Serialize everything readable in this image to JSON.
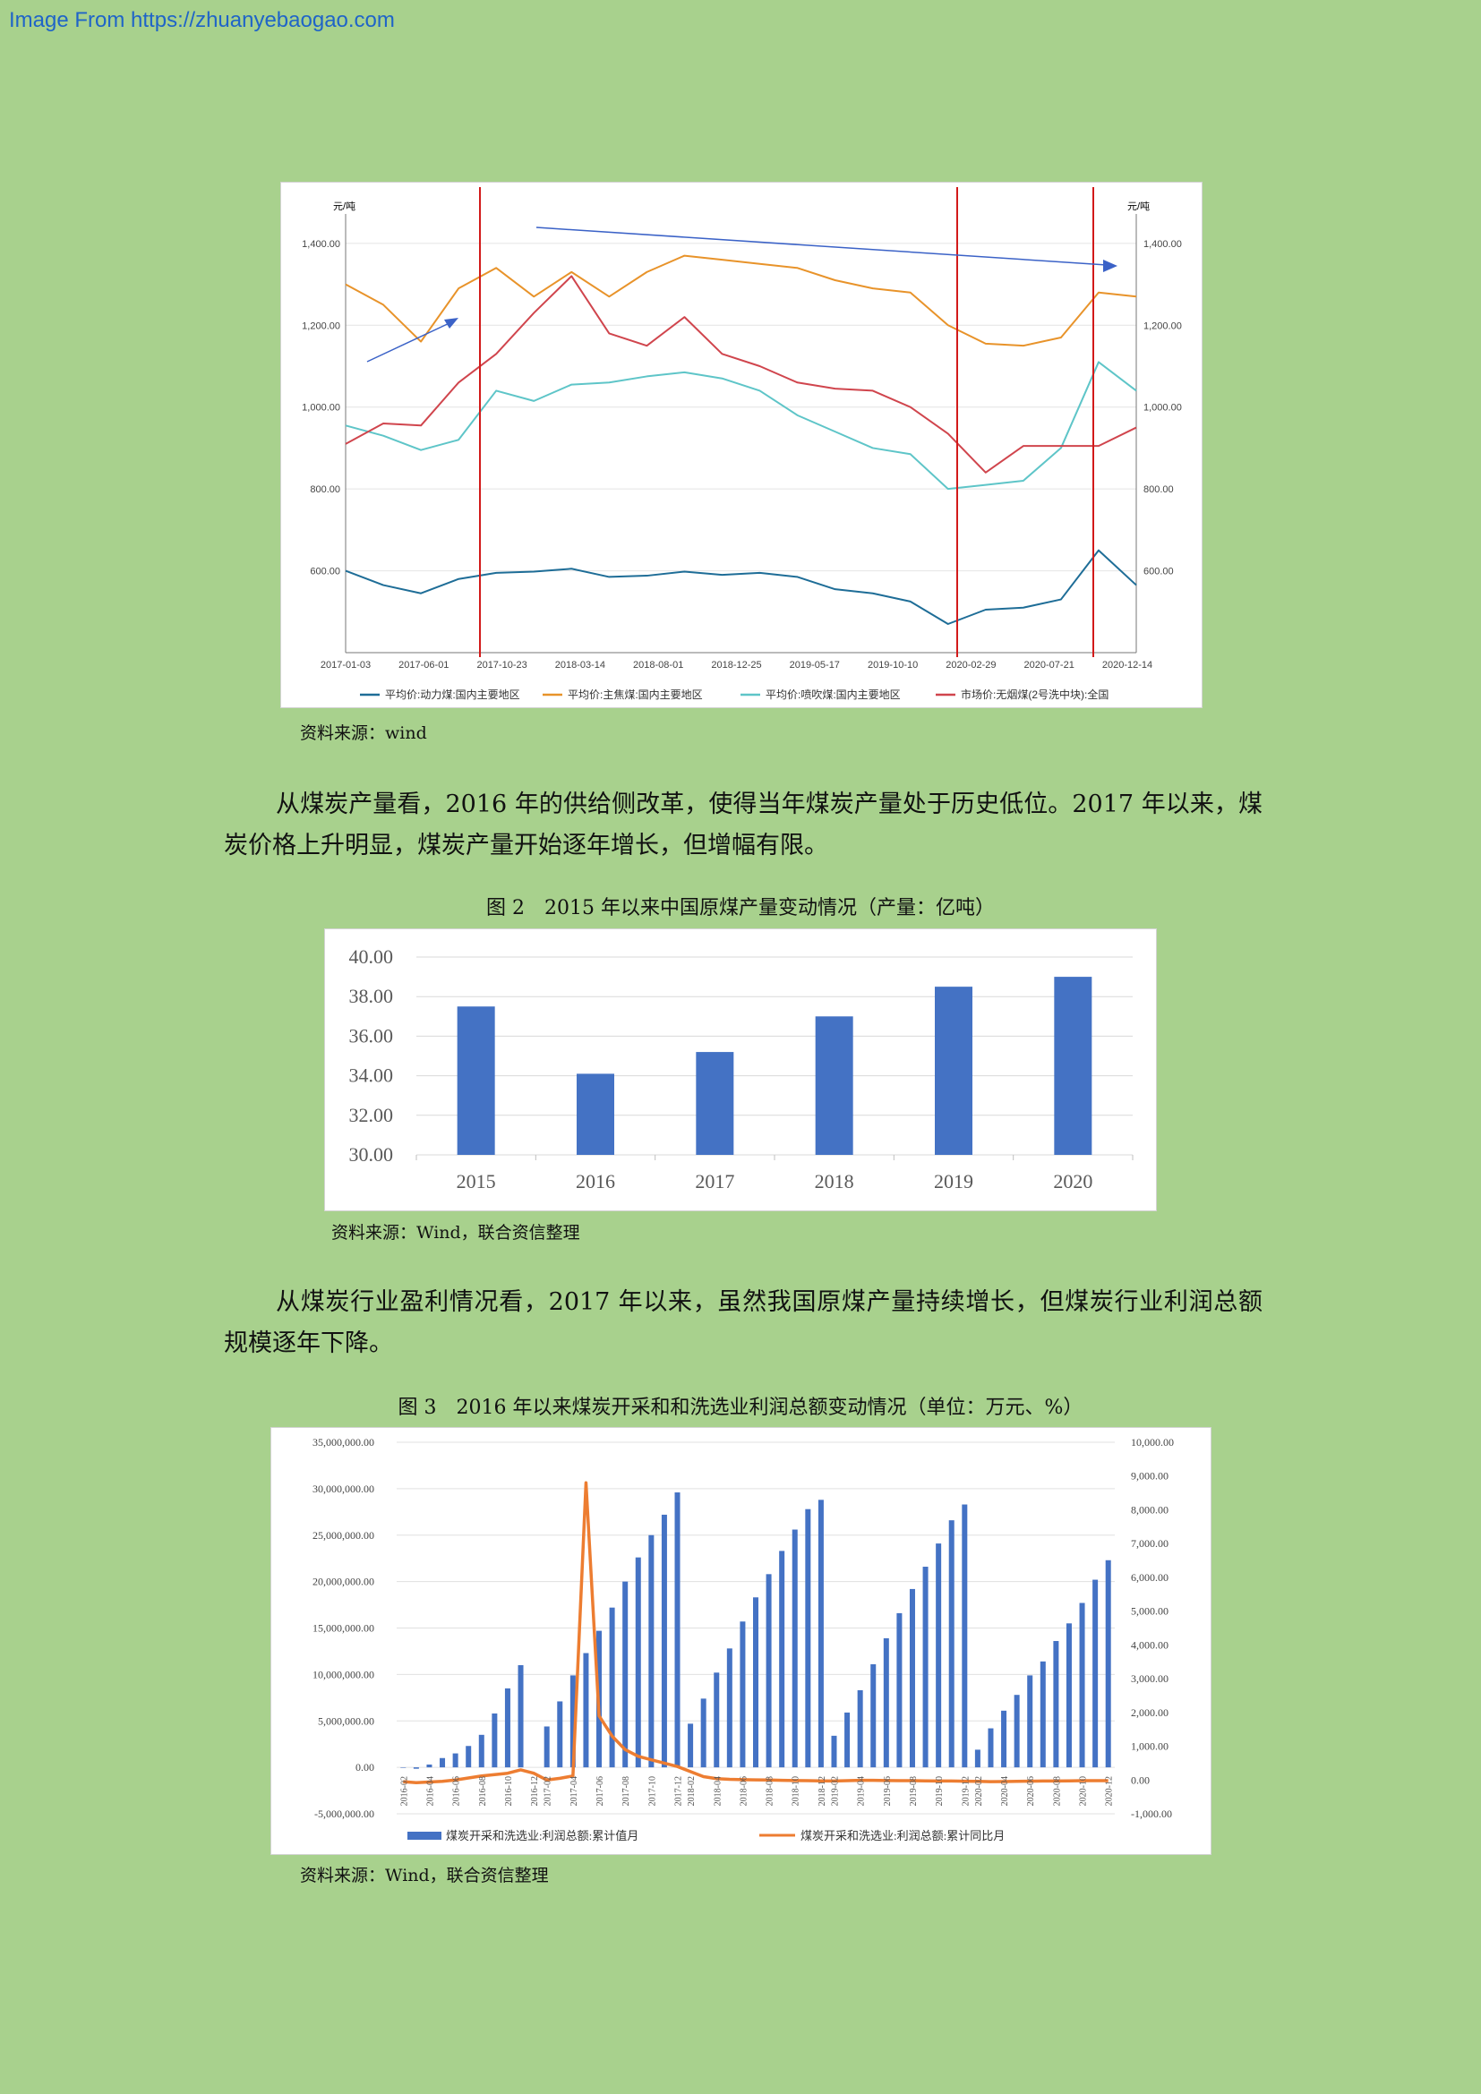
{
  "watermark": "Image From https://zhuanyebaogao.com",
  "figure1": {
    "unit_left": "元/吨",
    "unit_right": "元/吨",
    "source": "资料来源：wind"
  },
  "paragraph1": "从煤炭产量看，2016 年的供给侧改革，使得当年煤炭产量处于历史低位。2017 年以来，煤炭价格上升明显，煤炭产量开始逐年增长，但增幅有限。",
  "figure2": {
    "caption": "图 2　2015 年以来中国原煤产量变动情况（产量：亿吨）",
    "source": "资料来源：Wind，联合资信整理"
  },
  "paragraph2": "从煤炭行业盈利情况看，2017 年以来，虽然我国原煤产量持续增长，但煤炭行业利润总额规模逐年下降。",
  "figure3": {
    "caption": "图 3　2016 年以来煤炭开采和和洗选业利润总额变动情况（单位：万元、%）",
    "source": "资料来源：Wind，联合资信整理"
  },
  "colors": {
    "thermal": "#1e6d97",
    "coking": "#e8932a",
    "injection": "#5ec5c8",
    "anthracite": "#d0454d",
    "bar": "#4472c4",
    "yoy": "#ed7d31",
    "vline": "#d21a1a",
    "arrow": "#3b62c7"
  },
  "chart_data": [
    {
      "type": "line",
      "ylim": [
        400,
        1450
      ],
      "yticks": [
        "1,400.00",
        "1,200.00",
        "1,000.00",
        "800.00",
        "600.00"
      ],
      "ytick_values": [
        1400,
        1200,
        1000,
        800,
        600
      ],
      "xticks": [
        "2017-01-03",
        "2017-06-01",
        "2017-10-23",
        "2018-03-14",
        "2018-08-01",
        "2018-12-25",
        "2019-05-17",
        "2019-10-10",
        "2020-02-29",
        "2020-07-21",
        "2020-12-14"
      ],
      "x": [
        "2017-01",
        "2017-04",
        "2017-07",
        "2017-09",
        "2017-11",
        "2018-01",
        "2018-03",
        "2018-05",
        "2018-08",
        "2018-11",
        "2019-01",
        "2019-03",
        "2019-06",
        "2019-09",
        "2019-12",
        "2020-02",
        "2020-04",
        "2020-06",
        "2020-08",
        "2020-10",
        "2020-12",
        "2021-01"
      ],
      "legend_position": "bottom",
      "series": [
        {
          "name": "平均价:动力煤:国内主要地区",
          "color_key": "thermal",
          "values": [
            600,
            565,
            545,
            580,
            595,
            598,
            605,
            585,
            588,
            598,
            590,
            595,
            585,
            555,
            545,
            525,
            470,
            505,
            510,
            530,
            650,
            565
          ]
        },
        {
          "name": "平均价:主焦煤:国内主要地区",
          "color_key": "coking",
          "values": [
            1300,
            1250,
            1160,
            1290,
            1340,
            1270,
            1330,
            1270,
            1330,
            1370,
            1360,
            1350,
            1340,
            1310,
            1290,
            1280,
            1200,
            1155,
            1150,
            1170,
            1280,
            1270
          ]
        },
        {
          "name": "平均价:喷吹煤:国内主要地区",
          "color_key": "injection",
          "values": [
            955,
            930,
            895,
            920,
            1040,
            1015,
            1055,
            1060,
            1075,
            1085,
            1070,
            1040,
            980,
            940,
            900,
            885,
            800,
            810,
            820,
            900,
            1110,
            1040
          ]
        },
        {
          "name": "市场价:无烟煤(2号洗中块):全国",
          "color_key": "anthracite",
          "values": [
            910,
            960,
            955,
            1060,
            1130,
            1230,
            1320,
            1180,
            1150,
            1220,
            1130,
            1100,
            1060,
            1045,
            1040,
            1000,
            935,
            840,
            905,
            905,
            905,
            950
          ]
        }
      ]
    },
    {
      "type": "bar",
      "categories": [
        "2015",
        "2016",
        "2017",
        "2018",
        "2019",
        "2020"
      ],
      "values": [
        37.5,
        34.1,
        35.2,
        37.0,
        38.5,
        39.0
      ],
      "ylim": [
        30,
        40
      ],
      "yticks": [
        "40.00",
        "38.00",
        "36.00",
        "34.00",
        "32.00",
        "30.00"
      ],
      "ytick_values": [
        40,
        38,
        36,
        34,
        32,
        30
      ]
    },
    {
      "type": "bar",
      "categories": [
        "2016-02",
        "2016-03",
        "2016-04",
        "2016-05",
        "2016-06",
        "2016-07",
        "2016-08",
        "2016-09",
        "2016-10",
        "2016-11",
        "2016-12",
        "2017-02",
        "2017-03",
        "2017-04",
        "2017-05",
        "2017-06",
        "2017-07",
        "2017-08",
        "2017-09",
        "2017-10",
        "2017-11",
        "2017-12",
        "2018-02",
        "2018-03",
        "2018-04",
        "2018-05",
        "2018-06",
        "2018-07",
        "2018-08",
        "2018-09",
        "2018-10",
        "2018-11",
        "2018-12",
        "2019-02",
        "2019-03",
        "2019-04",
        "2019-05",
        "2019-06",
        "2019-07",
        "2019-08",
        "2019-09",
        "2019-10",
        "2019-11",
        "2019-12",
        "2020-02",
        "2020-03",
        "2020-04",
        "2020-05",
        "2020-06",
        "2020-07",
        "2020-08",
        "2020-09",
        "2020-10",
        "2020-11",
        "2020-12"
      ],
      "xtick_labels": [
        "2016-02",
        "2016-04",
        "2016-06",
        "2016-08",
        "2016-10",
        "2016-12",
        "2017-02",
        "2017-04",
        "2017-06",
        "2017-08",
        "2017-10",
        "2017-12",
        "2018-02",
        "2018-04",
        "2018-06",
        "2018-08",
        "2018-10",
        "2018-12",
        "2019-02",
        "2019-04",
        "2019-06",
        "2019-08",
        "2019-10",
        "2019-12",
        "2020-02",
        "2020-04",
        "2020-06",
        "2020-08",
        "2020-10",
        "2020-12"
      ],
      "series": [
        {
          "name": "煤炭开采和洗选业:利润总额:累计值月",
          "axis": "left",
          "color_key": "bar",
          "values": [
            -50000,
            -150000,
            300000,
            1000000,
            1500000,
            2300000,
            3500000,
            5800000,
            8500000,
            11000000,
            0,
            4400000,
            7100000,
            9900000,
            12300000,
            14700000,
            17200000,
            20000000,
            22600000,
            25000000,
            27200000,
            29600000,
            4700000,
            7400000,
            10200000,
            12800000,
            15700000,
            18300000,
            20800000,
            23300000,
            25600000,
            27800000,
            28800000,
            3400000,
            5900000,
            8300000,
            11100000,
            13900000,
            16600000,
            19200000,
            21600000,
            24100000,
            26600000,
            28300000,
            1900000,
            4200000,
            6100000,
            7800000,
            9900000,
            11400000,
            13600000,
            15500000,
            17700000,
            20200000,
            22300000
          ]
        },
        {
          "name": "煤炭开采和洗选业:利润总额:累计同比月",
          "axis": "right",
          "type": "line",
          "color_key": "yoy",
          "values": [
            -50,
            -80,
            -60,
            -40,
            0,
            60,
            120,
            160,
            200,
            300,
            200,
            0,
            50,
            120,
            8800,
            1900,
            1300,
            900,
            700,
            600,
            500,
            400,
            250,
            100,
            40,
            20,
            10,
            5,
            0,
            -10,
            -15,
            -20,
            -25,
            -30,
            -20,
            -10,
            -10,
            -15,
            -20,
            -20,
            -25,
            -30,
            -30,
            -35,
            -40,
            -50,
            -45,
            -40,
            -35,
            -30,
            -30,
            -25,
            -20,
            -20,
            -20
          ]
        }
      ],
      "ylim": [
        -5000000,
        35000000
      ],
      "yticks": [
        "35,000,000.00",
        "30,000,000.00",
        "25,000,000.00",
        "20,000,000.00",
        "15,000,000.00",
        "10,000,000.00",
        "5,000,000.00",
        "0.00",
        "-5,000,000.00"
      ],
      "ytick_values": [
        35000000,
        30000000,
        25000000,
        20000000,
        15000000,
        10000000,
        5000000,
        0,
        -5000000
      ],
      "y2lim": [
        -1000,
        10000
      ],
      "y2ticks": [
        "10,000.00",
        "9,000.00",
        "8,000.00",
        "7,000.00",
        "6,000.00",
        "5,000.00",
        "4,000.00",
        "3,000.00",
        "2,000.00",
        "1,000.00",
        "0.00",
        "-1,000.00"
      ],
      "y2tick_values": [
        10000,
        9000,
        8000,
        7000,
        6000,
        5000,
        4000,
        3000,
        2000,
        1000,
        0,
        -1000
      ],
      "legend_position": "bottom"
    }
  ]
}
